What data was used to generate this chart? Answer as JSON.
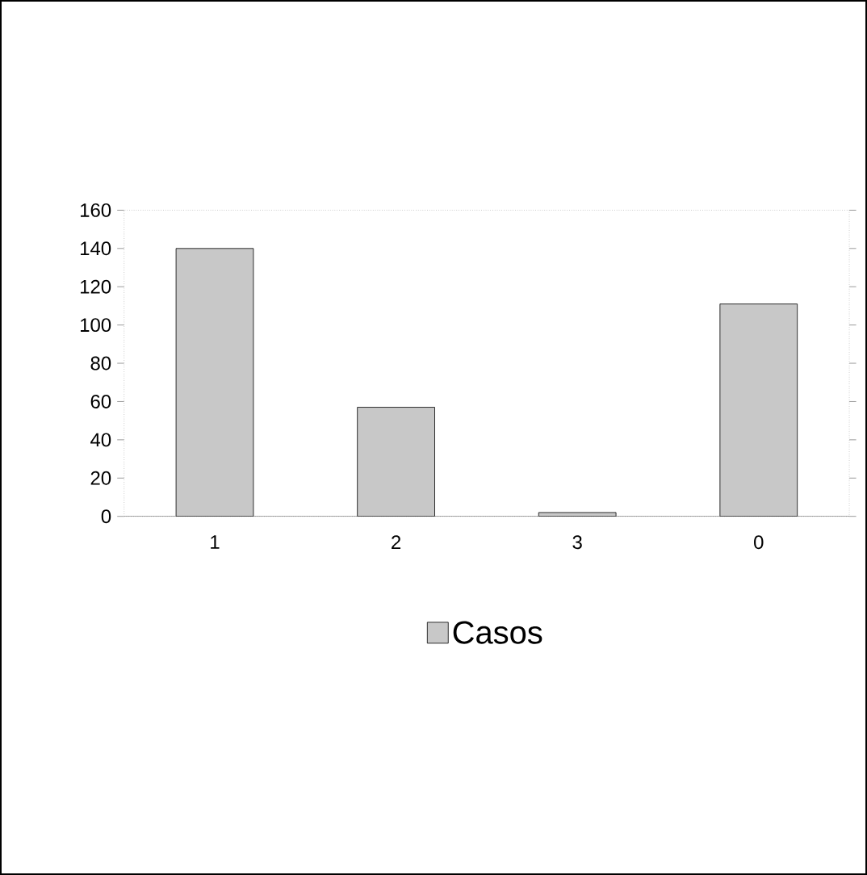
{
  "chart_data": {
    "type": "bar",
    "categories": [
      "1",
      "2",
      "3",
      "0"
    ],
    "series": [
      {
        "name": "Casos",
        "color": "#c8c8c8",
        "values": [
          140,
          57,
          2,
          111
        ]
      }
    ],
    "ylim": [
      0,
      160
    ],
    "yticks": [
      0,
      20,
      40,
      60,
      80,
      100,
      120,
      140,
      160
    ],
    "grid": false,
    "legend": "bottom"
  }
}
